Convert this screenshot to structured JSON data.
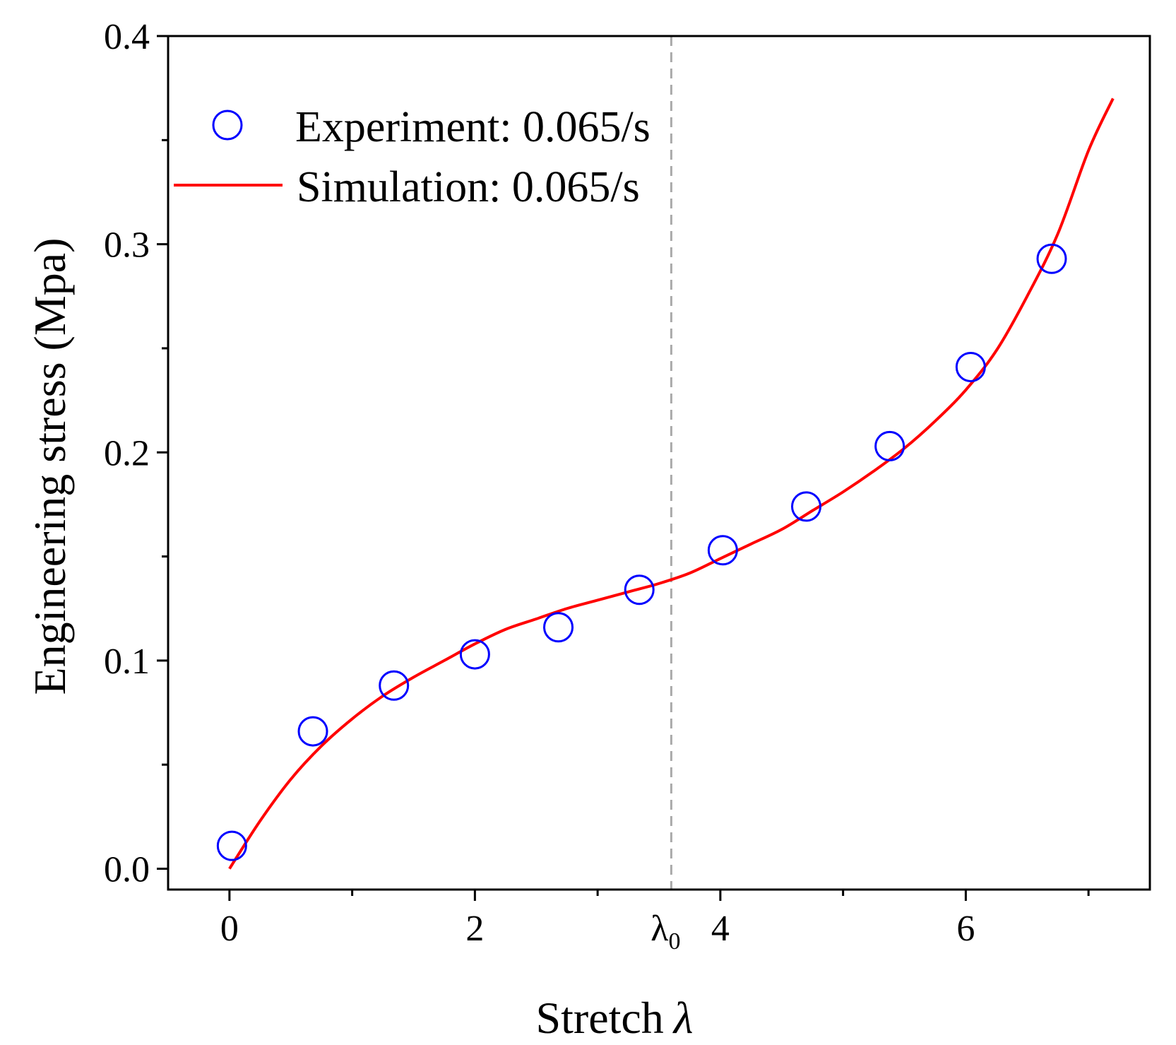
{
  "chart_data": {
    "type": "scatter",
    "title": "",
    "xlabel": "Stretch",
    "xlabel_symbol": "λ",
    "ylabel": "Engineering stress (Mpa)",
    "xlim": [
      -0.5,
      7.5
    ],
    "ylim": [
      -0.01,
      0.4
    ],
    "xticks": [
      0,
      2,
      4,
      6
    ],
    "xtick_labels": [
      "0",
      "2",
      "4",
      "6"
    ],
    "xminor": [
      1,
      3,
      5,
      7
    ],
    "yticks": [
      0.0,
      0.1,
      0.2,
      0.3,
      0.4
    ],
    "ytick_labels": [
      "0.0",
      "0.1",
      "0.2",
      "0.3",
      "0.4"
    ],
    "yminor": [
      0.05,
      0.15,
      0.25,
      0.35
    ],
    "grid": false,
    "legend_position": "top-left",
    "series": [
      {
        "name": "Experiment: 0.065/s",
        "kind": "scatter",
        "marker": "open-circle",
        "color": "#0000ff",
        "x": [
          0.02,
          0.68,
          1.34,
          2.0,
          2.68,
          3.34,
          4.02,
          4.7,
          5.38,
          6.04,
          6.7
        ],
        "y": [
          0.011,
          0.066,
          0.088,
          0.103,
          0.116,
          0.134,
          0.153,
          0.174,
          0.203,
          0.241,
          0.293
        ]
      },
      {
        "name": "Simulation: 0.065/s",
        "kind": "line",
        "color": "#ff0000",
        "x": [
          0.0,
          0.25,
          0.5,
          0.75,
          1.0,
          1.25,
          1.5,
          1.75,
          2.0,
          2.25,
          2.5,
          2.75,
          3.0,
          3.25,
          3.5,
          3.75,
          4.0,
          4.25,
          4.5,
          4.75,
          5.0,
          5.25,
          5.5,
          5.75,
          6.0,
          6.25,
          6.5,
          6.75,
          7.0,
          7.2
        ],
        "y": [
          0.0,
          0.023,
          0.043,
          0.059,
          0.072,
          0.083,
          0.092,
          0.1,
          0.108,
          0.115,
          0.12,
          0.125,
          0.129,
          0.133,
          0.137,
          0.142,
          0.149,
          0.156,
          0.163,
          0.172,
          0.181,
          0.191,
          0.202,
          0.215,
          0.23,
          0.249,
          0.275,
          0.305,
          0.345,
          0.37
        ]
      }
    ],
    "annotations": [
      {
        "type": "vline",
        "x": 3.6,
        "style": "dashed",
        "color": "#aaaaaa",
        "label": "λ",
        "label_subscript": "0"
      }
    ]
  }
}
